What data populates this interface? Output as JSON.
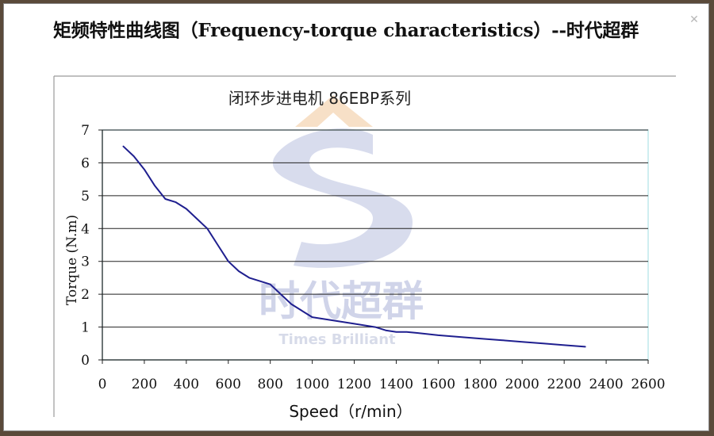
{
  "page_title": "矩频特性曲线图（Frequency-torque characteristics）--时代超群",
  "close_icon": "close-icon",
  "watermark": {
    "cn": "时代超群",
    "en": "Times Brilliant"
  },
  "chart_data": {
    "type": "line",
    "title": "闭环步进电机 86EBP系列",
    "xlabel": "Speed（r/min）",
    "ylabel": "Torque (N.m)",
    "xlim": [
      0,
      2600
    ],
    "ylim": [
      0,
      7
    ],
    "x_ticks": [
      "0",
      "200",
      "400",
      "600",
      "800",
      "1000",
      "1200",
      "1400",
      "1600",
      "1800",
      "2000",
      "2200",
      "2400",
      "2600"
    ],
    "y_ticks": [
      "0",
      "1",
      "2",
      "3",
      "4",
      "5",
      "6",
      "7"
    ],
    "grid": "horizontal",
    "legend": "none",
    "series": [
      {
        "color": "#1f1f8f",
        "x": [
          100,
          150,
          200,
          250,
          300,
          350,
          400,
          450,
          500,
          550,
          600,
          650,
          700,
          750,
          800,
          850,
          900,
          950,
          1000,
          1100,
          1200,
          1300,
          1350,
          1400,
          1450,
          1500,
          1600,
          1700,
          1800,
          1900,
          2000,
          2100,
          2200,
          2300
        ],
        "y": [
          6.5,
          6.2,
          5.8,
          5.3,
          4.9,
          4.8,
          4.6,
          4.3,
          4.0,
          3.5,
          3.0,
          2.7,
          2.5,
          2.4,
          2.3,
          2.0,
          1.7,
          1.5,
          1.3,
          1.2,
          1.1,
          1.0,
          0.9,
          0.85,
          0.85,
          0.82,
          0.75,
          0.7,
          0.65,
          0.6,
          0.55,
          0.5,
          0.45,
          0.4
        ]
      }
    ]
  }
}
